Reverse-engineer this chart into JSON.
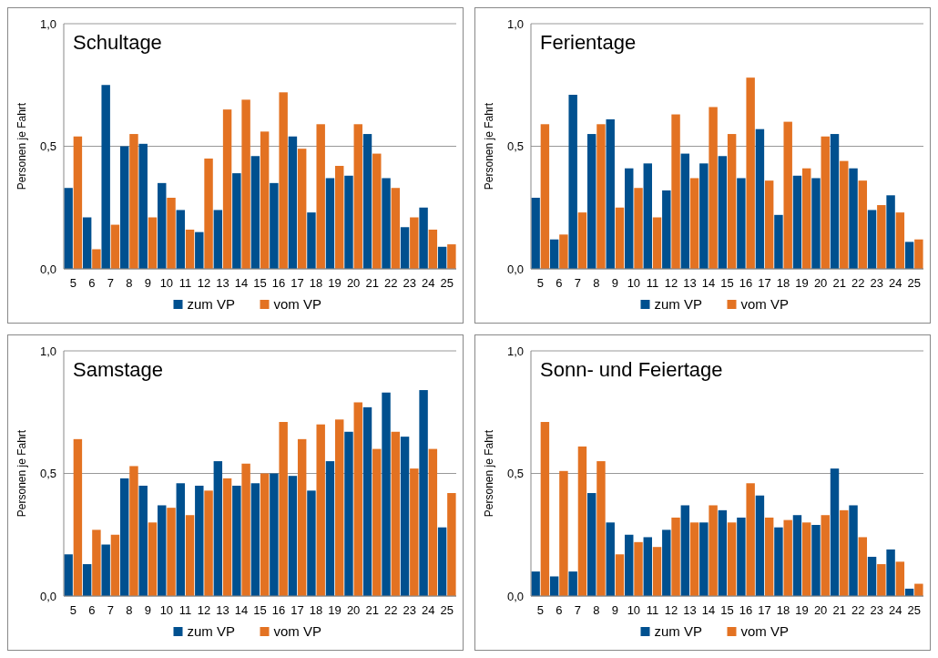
{
  "chart_data": [
    {
      "type": "bar",
      "title": "Schultage",
      "ylabel": "Personen je Fahrt",
      "categories": [
        "5",
        "6",
        "7",
        "8",
        "9",
        "10",
        "11",
        "12",
        "13",
        "14",
        "15",
        "16",
        "17",
        "18",
        "19",
        "20",
        "21",
        "22",
        "23",
        "24",
        "25"
      ],
      "ylim": [
        0,
        1
      ],
      "yticks": [
        {
          "value": 0,
          "label": "0,0"
        },
        {
          "value": 0.5,
          "label": "0,5"
        },
        {
          "value": 1,
          "label": "1,0"
        }
      ],
      "grid": "y",
      "legend": "bottom",
      "series": [
        {
          "name": "zum VP",
          "color": "#00508f",
          "values": [
            0.33,
            0.21,
            0.75,
            0.5,
            0.51,
            0.35,
            0.24,
            0.15,
            0.24,
            0.39,
            0.46,
            0.35,
            0.54,
            0.23,
            0.37,
            0.38,
            0.55,
            0.37,
            0.17,
            0.25,
            0.09
          ]
        },
        {
          "name": "vom VP",
          "color": "#e37222",
          "values": [
            0.54,
            0.08,
            0.18,
            0.55,
            0.21,
            0.29,
            0.16,
            0.45,
            0.65,
            0.69,
            0.56,
            0.72,
            0.49,
            0.59,
            0.42,
            0.59,
            0.47,
            0.33,
            0.21,
            0.16,
            0.1
          ]
        }
      ]
    },
    {
      "type": "bar",
      "title": "Ferientage",
      "ylabel": "Personen je Fahrt",
      "categories": [
        "5",
        "6",
        "7",
        "8",
        "9",
        "10",
        "11",
        "12",
        "13",
        "14",
        "15",
        "16",
        "17",
        "18",
        "19",
        "20",
        "21",
        "22",
        "23",
        "24",
        "25"
      ],
      "ylim": [
        0,
        1
      ],
      "yticks": [
        {
          "value": 0,
          "label": "0,0"
        },
        {
          "value": 0.5,
          "label": "0,5"
        },
        {
          "value": 1,
          "label": "1,0"
        }
      ],
      "grid": "y",
      "legend": "bottom",
      "series": [
        {
          "name": "zum VP",
          "color": "#00508f",
          "values": [
            0.29,
            0.12,
            0.71,
            0.55,
            0.61,
            0.41,
            0.43,
            0.32,
            0.47,
            0.43,
            0.46,
            0.37,
            0.57,
            0.22,
            0.38,
            0.37,
            0.55,
            0.41,
            0.24,
            0.3,
            0.11
          ]
        },
        {
          "name": "vom VP",
          "color": "#e37222",
          "values": [
            0.59,
            0.14,
            0.23,
            0.59,
            0.25,
            0.33,
            0.21,
            0.63,
            0.37,
            0.66,
            0.55,
            0.78,
            0.36,
            0.6,
            0.41,
            0.54,
            0.44,
            0.36,
            0.26,
            0.23,
            0.12
          ]
        }
      ]
    },
    {
      "type": "bar",
      "title": "Samstage",
      "ylabel": "Personen je Fahrt",
      "categories": [
        "5",
        "6",
        "7",
        "8",
        "9",
        "10",
        "11",
        "12",
        "13",
        "14",
        "15",
        "16",
        "17",
        "18",
        "19",
        "20",
        "21",
        "22",
        "23",
        "24",
        "25"
      ],
      "ylim": [
        0,
        1
      ],
      "yticks": [
        {
          "value": 0,
          "label": "0,0"
        },
        {
          "value": 0.5,
          "label": "0,5"
        },
        {
          "value": 1,
          "label": "1,0"
        }
      ],
      "grid": "y",
      "legend": "bottom",
      "series": [
        {
          "name": "zum VP",
          "color": "#00508f",
          "values": [
            0.17,
            0.13,
            0.21,
            0.48,
            0.45,
            0.37,
            0.46,
            0.45,
            0.55,
            0.45,
            0.46,
            0.5,
            0.49,
            0.43,
            0.55,
            0.67,
            0.77,
            0.83,
            0.65,
            0.84,
            0.28
          ]
        },
        {
          "name": "vom VP",
          "color": "#e37222",
          "values": [
            0.64,
            0.27,
            0.25,
            0.53,
            0.3,
            0.36,
            0.33,
            0.43,
            0.48,
            0.54,
            0.5,
            0.71,
            0.64,
            0.7,
            0.72,
            0.79,
            0.6,
            0.67,
            0.52,
            0.6,
            0.42
          ]
        }
      ]
    },
    {
      "type": "bar",
      "title": "Sonn- und Feiertage",
      "ylabel": "Personen je Fahrt",
      "categories": [
        "5",
        "6",
        "7",
        "8",
        "9",
        "10",
        "11",
        "12",
        "13",
        "14",
        "15",
        "16",
        "17",
        "18",
        "19",
        "20",
        "21",
        "22",
        "23",
        "24",
        "25"
      ],
      "ylim": [
        0,
        1
      ],
      "yticks": [
        {
          "value": 0,
          "label": "0,0"
        },
        {
          "value": 0.5,
          "label": "0,5"
        },
        {
          "value": 1,
          "label": "1,0"
        }
      ],
      "grid": "y",
      "legend": "bottom",
      "series": [
        {
          "name": "zum VP",
          "color": "#00508f",
          "values": [
            0.1,
            0.08,
            0.1,
            0.42,
            0.3,
            0.25,
            0.24,
            0.27,
            0.37,
            0.3,
            0.35,
            0.32,
            0.41,
            0.28,
            0.33,
            0.29,
            0.52,
            0.37,
            0.16,
            0.19,
            0.03
          ]
        },
        {
          "name": "vom VP",
          "color": "#e37222",
          "values": [
            0.71,
            0.51,
            0.61,
            0.55,
            0.17,
            0.22,
            0.2,
            0.32,
            0.3,
            0.37,
            0.3,
            0.46,
            0.32,
            0.31,
            0.3,
            0.33,
            0.35,
            0.24,
            0.13,
            0.14,
            0.05
          ]
        }
      ]
    }
  ]
}
